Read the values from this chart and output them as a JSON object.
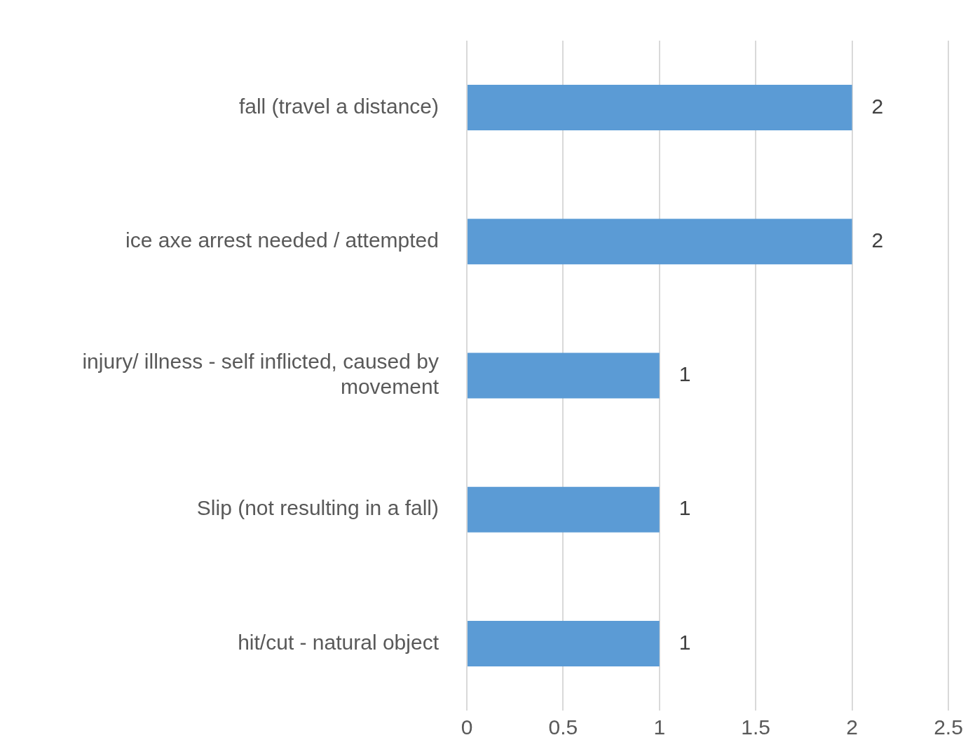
{
  "chart_data": {
    "type": "bar",
    "orientation": "horizontal",
    "categories": [
      "fall (travel a distance)",
      "ice axe arrest needed / attempted",
      "injury/ illness - self inflicted, caused by movement",
      "Slip (not resulting in a fall)",
      "hit/cut - natural object"
    ],
    "values": [
      2,
      2,
      1,
      1,
      1
    ],
    "color": "#5b9bd5",
    "xlim": [
      0,
      2.5
    ],
    "xticks": [
      0,
      0.5,
      1,
      1.5,
      2,
      2.5
    ],
    "grid": "x",
    "data_labels": true
  }
}
